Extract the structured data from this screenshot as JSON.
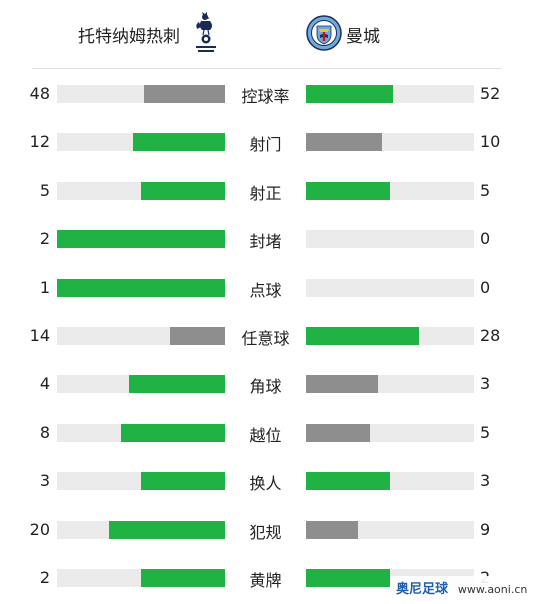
{
  "header": {
    "home_team": "托特纳姆热刺",
    "away_team": "曼城",
    "home_logo_icon": "tottenham-cockerel-crest",
    "away_logo_icon": "manchester-city-crest"
  },
  "colors": {
    "higher": "#20b243",
    "lower": "#8e8e8e",
    "track": "#ebebeb"
  },
  "stats": [
    {
      "label": "控球率",
      "home": "48",
      "away": "52",
      "home_fill": 0.48,
      "away_fill": 0.52,
      "home_color": "#8e8e8e",
      "away_color": "#20b243"
    },
    {
      "label": "射门",
      "home": "12",
      "away": "10",
      "home_fill": 0.55,
      "away_fill": 0.45,
      "home_color": "#20b243",
      "away_color": "#8e8e8e"
    },
    {
      "label": "射正",
      "home": "5",
      "away": "5",
      "home_fill": 0.5,
      "away_fill": 0.5,
      "home_color": "#20b243",
      "away_color": "#20b243"
    },
    {
      "label": "封堵",
      "home": "2",
      "away": "0",
      "home_fill": 1.0,
      "away_fill": 0.0,
      "home_color": "#20b243",
      "away_color": "#8e8e8e"
    },
    {
      "label": "点球",
      "home": "1",
      "away": "0",
      "home_fill": 1.0,
      "away_fill": 0.0,
      "home_color": "#20b243",
      "away_color": "#8e8e8e"
    },
    {
      "label": "任意球",
      "home": "14",
      "away": "28",
      "home_fill": 0.33,
      "away_fill": 0.67,
      "home_color": "#8e8e8e",
      "away_color": "#20b243"
    },
    {
      "label": "角球",
      "home": "4",
      "away": "3",
      "home_fill": 0.57,
      "away_fill": 0.43,
      "home_color": "#20b243",
      "away_color": "#8e8e8e"
    },
    {
      "label": "越位",
      "home": "8",
      "away": "5",
      "home_fill": 0.62,
      "away_fill": 0.38,
      "home_color": "#20b243",
      "away_color": "#8e8e8e"
    },
    {
      "label": "换人",
      "home": "3",
      "away": "3",
      "home_fill": 0.5,
      "away_fill": 0.5,
      "home_color": "#20b243",
      "away_color": "#20b243"
    },
    {
      "label": "犯规",
      "home": "20",
      "away": "9",
      "home_fill": 0.69,
      "away_fill": 0.31,
      "home_color": "#20b243",
      "away_color": "#8e8e8e"
    },
    {
      "label": "黄牌",
      "home": "2",
      "away": "2",
      "home_fill": 0.5,
      "away_fill": 0.5,
      "home_color": "#20b243",
      "away_color": "#20b243"
    }
  ],
  "watermark": {
    "name": "奥尼足球",
    "url": "www.aoni.cn"
  }
}
